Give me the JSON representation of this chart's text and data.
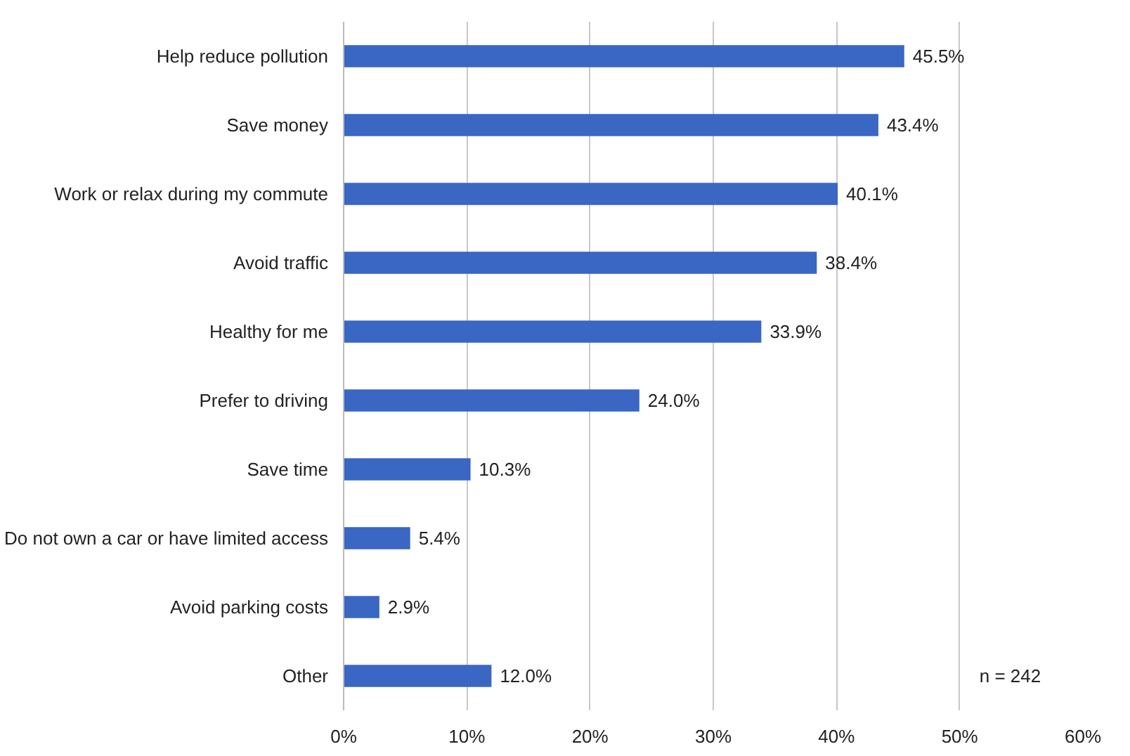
{
  "chart_data": {
    "type": "bar",
    "orientation": "horizontal",
    "categories": [
      "Help reduce pollution",
      "Save money",
      "Work or relax during my commute",
      "Avoid traffic",
      "Healthy for me",
      "Prefer to driving",
      "Save time",
      "Do not own a car or have limited access",
      "Avoid parking costs",
      "Other"
    ],
    "values": [
      45.5,
      43.4,
      40.1,
      38.4,
      33.9,
      24.0,
      10.3,
      5.4,
      2.9,
      12.0
    ],
    "value_labels": [
      "45.5%",
      "43.4%",
      "40.1%",
      "38.4%",
      "33.9%",
      "24.0%",
      "10.3%",
      "5.4%",
      "2.9%",
      "12.0%"
    ],
    "color": "#3a66c4",
    "xlim": [
      0,
      60
    ],
    "xticks": [
      {
        "value": 0,
        "label": "0%"
      },
      {
        "value": 10,
        "label": "10%"
      },
      {
        "value": 20,
        "label": "20%"
      },
      {
        "value": 30,
        "label": "30%"
      },
      {
        "value": 40,
        "label": "40%"
      },
      {
        "value": 50,
        "label": "50%"
      },
      {
        "value": 60,
        "label": "60%"
      }
    ],
    "grid": "x",
    "annotations": [
      "n = 242"
    ]
  }
}
